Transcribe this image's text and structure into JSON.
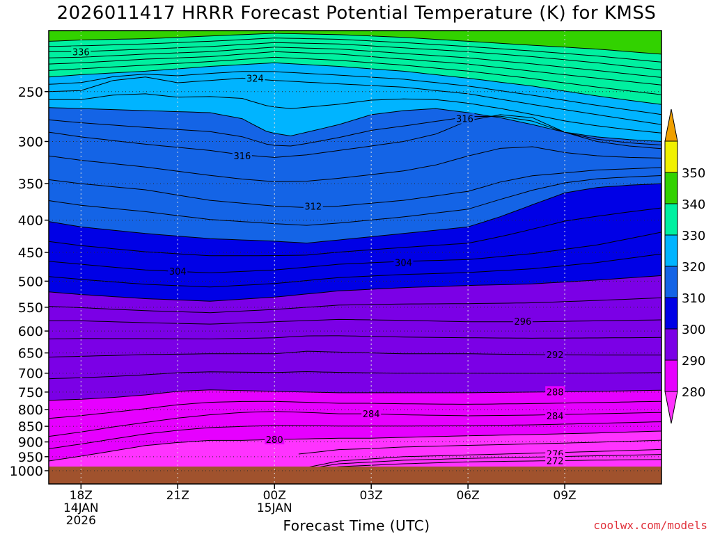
{
  "title": "2026011417 HRRR Forecast Potential Temperature (K) for KMSS",
  "credit": "coolwx.com/models",
  "chart_data": {
    "type": "contour-time-height",
    "xlabel": "Forecast Time (UTC)",
    "ylabel": "",
    "y_axis": {
      "type": "log-pressure",
      "units": "hPa",
      "ticks": [
        250,
        300,
        350,
        400,
        450,
        500,
        550,
        600,
        650,
        700,
        750,
        800,
        850,
        900,
        950,
        1000
      ],
      "range": [
        1000,
        200
      ]
    },
    "x_axis": {
      "range_hours": [
        -1,
        18
      ],
      "ticks": [
        {
          "hour": 0,
          "label": [
            "18Z",
            "14JAN",
            "2026"
          ]
        },
        {
          "hour": 3,
          "label": [
            "21Z"
          ]
        },
        {
          "hour": 6,
          "label": [
            "00Z",
            "15JAN"
          ]
        },
        {
          "hour": 9,
          "label": [
            "03Z"
          ]
        },
        {
          "hour": 12,
          "label": [
            "06Z"
          ]
        },
        {
          "hour": 15,
          "label": [
            "09Z"
          ]
        }
      ]
    },
    "colorbar": {
      "bounds": [
        280,
        290,
        300,
        310,
        320,
        330,
        340,
        350
      ],
      "labels": [
        "280",
        "290",
        "300",
        "310",
        "320",
        "330",
        "340",
        "350"
      ],
      "colors": [
        "#e600ff",
        "#7b00e6",
        "#0000e6",
        "#1464e6",
        "#00b4ff",
        "#00f0a0",
        "#32d200",
        "#f0f000"
      ],
      "under_color": "#ff33ff",
      "over_color": "#f0a000"
    },
    "ground_color": "#a0522d",
    "grid": true,
    "series": [
      {
        "name": "272",
        "labeled": true,
        "values": [
          [
            6.7,
            1002
          ],
          [
            8,
            985
          ],
          [
            10,
            975
          ],
          [
            12,
            968
          ],
          [
            14,
            965
          ],
          [
            16,
            962
          ],
          [
            18,
            960
          ]
        ]
      },
      {
        "name": "276",
        "labeled": true,
        "values": [
          [
            6.7,
            995
          ],
          [
            8,
            965
          ],
          [
            10,
            950
          ],
          [
            12,
            944
          ],
          [
            14,
            938
          ],
          [
            16,
            932
          ],
          [
            18,
            925
          ]
        ]
      },
      {
        "name": "280",
        "labeled": true,
        "values": [
          [
            -1,
            965
          ],
          [
            0,
            948
          ],
          [
            1,
            930
          ],
          [
            2,
            912
          ],
          [
            3,
            902
          ],
          [
            4,
            895
          ],
          [
            5,
            895
          ],
          [
            6,
            892
          ],
          [
            7,
            890
          ],
          [
            8,
            888
          ],
          [
            9,
            888
          ],
          [
            10,
            885
          ],
          [
            12,
            880
          ],
          [
            14,
            876
          ],
          [
            16,
            871
          ],
          [
            18,
            865
          ]
        ]
      },
      {
        "name": "284",
        "labeled": true,
        "values": [
          [
            -1,
            882
          ],
          [
            0,
            868
          ],
          [
            1,
            852
          ],
          [
            2,
            838
          ],
          [
            3,
            825
          ],
          [
            4,
            815
          ],
          [
            5,
            808
          ],
          [
            6,
            805
          ],
          [
            7,
            808
          ],
          [
            8,
            812
          ],
          [
            9,
            812
          ],
          [
            10,
            815
          ],
          [
            12,
            818
          ],
          [
            14,
            816
          ],
          [
            16,
            812
          ],
          [
            18,
            808
          ]
        ]
      },
      {
        "name": "288",
        "labeled": true,
        "values": [
          [
            -1,
            773
          ],
          [
            0,
            770
          ],
          [
            1,
            765
          ],
          [
            2,
            758
          ],
          [
            3,
            748
          ],
          [
            4,
            744
          ],
          [
            5,
            746
          ],
          [
            6,
            748
          ],
          [
            8,
            752
          ],
          [
            10,
            752
          ],
          [
            12,
            752
          ],
          [
            14,
            750
          ],
          [
            16,
            748
          ],
          [
            18,
            745
          ]
        ]
      },
      {
        "name": "292",
        "labeled": true,
        "values": [
          [
            -1,
            660
          ],
          [
            0,
            658
          ],
          [
            2,
            654
          ],
          [
            4,
            652
          ],
          [
            6,
            652
          ],
          [
            7,
            646
          ],
          [
            8,
            648
          ],
          [
            10,
            652
          ],
          [
            12,
            652
          ],
          [
            14,
            654
          ],
          [
            16,
            655
          ],
          [
            18,
            655
          ]
        ]
      },
      {
        "name": "296",
        "labeled": true,
        "values": [
          [
            -1,
            578
          ],
          [
            0,
            578
          ],
          [
            2,
            582
          ],
          [
            4,
            585
          ],
          [
            6,
            580
          ],
          [
            8,
            575
          ],
          [
            10,
            577
          ],
          [
            12,
            580
          ],
          [
            14,
            580
          ],
          [
            16,
            578
          ],
          [
            18,
            576
          ]
        ]
      },
      {
        "name": "300",
        "labeled": false,
        "values": [
          [
            -1,
            520
          ],
          [
            0,
            525
          ],
          [
            2,
            533
          ],
          [
            4,
            538
          ],
          [
            6,
            530
          ],
          [
            8,
            518
          ],
          [
            10,
            512
          ],
          [
            12,
            508
          ],
          [
            14,
            505
          ],
          [
            16,
            498
          ],
          [
            18,
            490
          ]
        ]
      },
      {
        "name": "304",
        "labeled": true,
        "values": [
          [
            -1,
            465
          ],
          [
            0,
            470
          ],
          [
            2,
            480
          ],
          [
            4,
            485
          ],
          [
            6,
            480
          ],
          [
            8,
            470
          ],
          [
            10,
            465
          ],
          [
            12,
            462
          ],
          [
            14,
            452
          ],
          [
            16,
            438
          ],
          [
            18,
            418
          ]
        ]
      },
      {
        "name": "308",
        "labeled": false,
        "values": [
          [
            -1,
            402
          ],
          [
            0,
            410
          ],
          [
            2,
            420
          ],
          [
            4,
            428
          ],
          [
            6,
            432
          ],
          [
            7,
            435
          ],
          [
            8,
            430
          ],
          [
            10,
            420
          ],
          [
            12,
            410
          ],
          [
            13,
            395
          ],
          [
            14,
            378
          ],
          [
            15,
            362
          ],
          [
            16,
            355
          ],
          [
            17,
            352
          ],
          [
            18,
            350
          ]
        ]
      },
      {
        "name": "312",
        "labeled": true,
        "values": [
          [
            -1,
            345
          ],
          [
            0,
            350
          ],
          [
            2,
            358
          ],
          [
            3,
            365
          ],
          [
            4,
            372
          ],
          [
            6,
            380
          ],
          [
            7,
            382
          ],
          [
            8,
            380
          ],
          [
            10,
            372
          ],
          [
            12,
            360
          ],
          [
            13,
            348
          ],
          [
            14,
            340
          ],
          [
            16,
            333
          ],
          [
            18,
            330
          ]
        ]
      },
      {
        "name": "316",
        "labeled": true,
        "values": [
          [
            -1,
            290
          ],
          [
            0,
            295
          ],
          [
            2,
            303
          ],
          [
            4,
            310
          ],
          [
            5,
            315
          ],
          [
            6,
            318
          ],
          [
            7,
            315
          ],
          [
            8,
            310
          ],
          [
            10,
            300
          ],
          [
            11,
            292
          ],
          [
            12,
            278
          ],
          [
            13,
            272
          ],
          [
            14,
            275
          ],
          [
            15,
            290
          ],
          [
            16,
            300
          ],
          [
            17,
            305
          ],
          [
            18,
            308
          ]
        ]
      },
      {
        "name": "320",
        "labeled": false,
        "values": [
          [
            -1,
            265
          ],
          [
            0,
            266
          ],
          [
            2,
            268
          ],
          [
            4,
            270
          ],
          [
            5,
            276
          ],
          [
            5.8,
            290
          ],
          [
            6.5,
            294
          ],
          [
            7,
            290
          ],
          [
            8,
            282
          ],
          [
            9,
            272
          ],
          [
            10,
            268
          ],
          [
            11,
            266
          ],
          [
            12,
            270
          ],
          [
            13,
            275
          ],
          [
            14,
            282
          ],
          [
            15,
            290
          ],
          [
            16,
            295
          ],
          [
            17,
            298
          ],
          [
            18,
            300
          ]
        ]
      },
      {
        "name": "324",
        "labeled": true,
        "values": [
          [
            -1,
            250
          ],
          [
            0,
            249
          ],
          [
            1,
            240
          ],
          [
            2,
            237
          ],
          [
            3,
            242
          ],
          [
            4,
            240
          ],
          [
            5,
            238
          ],
          [
            6,
            240
          ],
          [
            8,
            243
          ],
          [
            10,
            246
          ],
          [
            12,
            252
          ],
          [
            14,
            262
          ],
          [
            16,
            272
          ],
          [
            18,
            282
          ]
        ]
      },
      {
        "name": "328",
        "labeled": false,
        "values": [
          [
            -1,
            237
          ],
          [
            0,
            235
          ],
          [
            2,
            232
          ],
          [
            4,
            228
          ],
          [
            6,
            225
          ],
          [
            8,
            228
          ],
          [
            10,
            232
          ],
          [
            12,
            238
          ],
          [
            14,
            245
          ],
          [
            16,
            254
          ],
          [
            18,
            262
          ]
        ]
      },
      {
        "name": "332",
        "labeled": false,
        "values": [
          [
            -1,
            226
          ],
          [
            0,
            225
          ],
          [
            2,
            222
          ],
          [
            4,
            220
          ],
          [
            6,
            216
          ],
          [
            8,
            218
          ],
          [
            10,
            222
          ],
          [
            12,
            226
          ],
          [
            14,
            232
          ],
          [
            16,
            238
          ],
          [
            18,
            244
          ]
        ]
      },
      {
        "name": "336",
        "labeled": true,
        "values": [
          [
            -1,
            216
          ],
          [
            0,
            216
          ],
          [
            2,
            214
          ],
          [
            4,
            212
          ],
          [
            6,
            209
          ],
          [
            8,
            210
          ],
          [
            10,
            213
          ],
          [
            12,
            216
          ],
          [
            14,
            220
          ],
          [
            16,
            225
          ],
          [
            18,
            231
          ]
        ]
      },
      {
        "name": "340",
        "labeled": false,
        "values": [
          [
            -1,
            208
          ],
          [
            0,
            207
          ],
          [
            2,
            206
          ],
          [
            4,
            204
          ],
          [
            6,
            202
          ],
          [
            8,
            203
          ],
          [
            10,
            205
          ],
          [
            12,
            208
          ],
          [
            14,
            211
          ],
          [
            16,
            214
          ],
          [
            18,
            218
          ]
        ]
      }
    ],
    "labels": [
      {
        "text": "336",
        "x": 0,
        "p": 216
      },
      {
        "text": "324",
        "x": 5.4,
        "p": 238
      },
      {
        "text": "316",
        "x": 11.9,
        "p": 276
      },
      {
        "text": "316",
        "x": 5,
        "p": 316
      },
      {
        "text": "312",
        "x": 7.2,
        "p": 380
      },
      {
        "text": "304",
        "x": 3,
        "p": 482
      },
      {
        "text": "304",
        "x": 10,
        "p": 467
      },
      {
        "text": "296",
        "x": 13.7,
        "p": 579
      },
      {
        "text": "292",
        "x": 14.7,
        "p": 654
      },
      {
        "text": "288",
        "x": 14.7,
        "p": 749
      },
      {
        "text": "284",
        "x": 9,
        "p": 812
      },
      {
        "text": "284",
        "x": 14.7,
        "p": 818
      },
      {
        "text": "280",
        "x": 6,
        "p": 892
      },
      {
        "text": "276",
        "x": 14.7,
        "p": 940
      },
      {
        "text": "272",
        "x": 14.7,
        "p": 964
      }
    ]
  }
}
